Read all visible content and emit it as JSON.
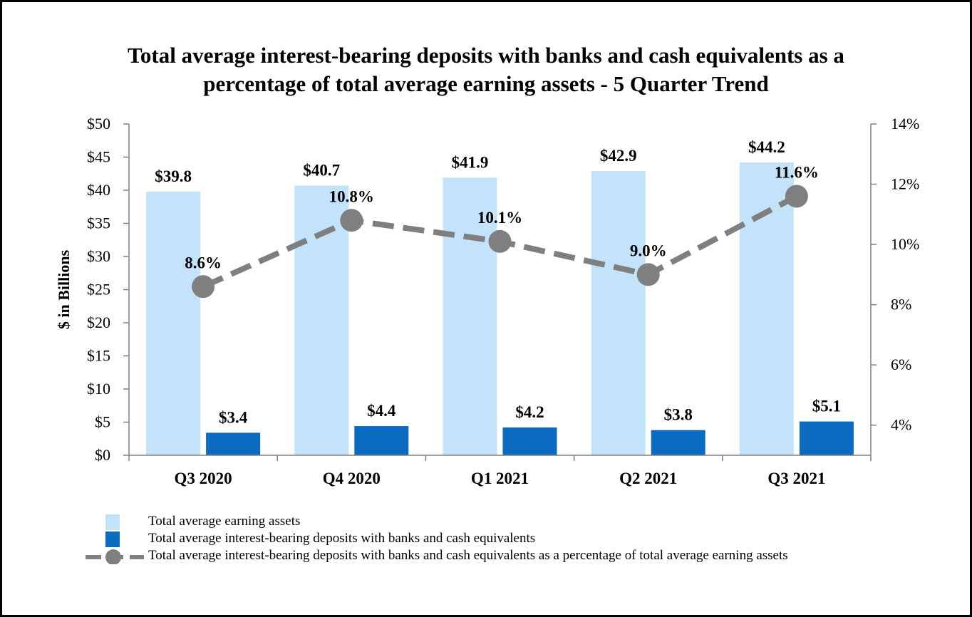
{
  "chart_data": {
    "type": "bar",
    "title": [
      "Total average interest-bearing deposits with banks and cash equivalents as a",
      "percentage of total average earning assets - 5 Quarter Trend"
    ],
    "categories": [
      "Q3 2020",
      "Q4 2020",
      "Q1 2021",
      "Q2 2021",
      "Q3 2021"
    ],
    "ylabel": "$ in Billions",
    "ylim": [
      0,
      50
    ],
    "yticks": [
      "$0",
      "$5",
      "$10",
      "$15",
      "$20",
      "$25",
      "$30",
      "$35",
      "$40",
      "$45",
      "$50"
    ],
    "y2lim": [
      3,
      14
    ],
    "y2ticks": [
      {
        "value": 4,
        "label": "4%"
      },
      {
        "value": 6,
        "label": "6%"
      },
      {
        "value": 8,
        "label": "8%"
      },
      {
        "value": 10,
        "label": "10%"
      },
      {
        "value": 12,
        "label": "12%"
      },
      {
        "value": 14,
        "label": "14%"
      }
    ],
    "series": [
      {
        "name": "Total average earning assets",
        "type": "bar",
        "axis": "left",
        "color": "#c2e3fa",
        "values": [
          39.8,
          40.7,
          41.9,
          42.9,
          44.2
        ],
        "labels": [
          "$39.8",
          "$40.7",
          "$41.9",
          "$42.9",
          "$44.2"
        ]
      },
      {
        "name": "Total average interest-bearing deposits with banks and cash equivalents",
        "type": "bar",
        "axis": "left",
        "color": "#0a6bc1",
        "values": [
          3.4,
          4.4,
          4.2,
          3.8,
          5.1
        ],
        "labels": [
          "$3.4",
          "$4.4",
          "$4.2",
          "$3.8",
          "$5.1"
        ]
      },
      {
        "name": "Total average interest-bearing deposits with banks and cash equivalents as a percentage of total average earning assets",
        "type": "line",
        "axis": "right",
        "style": "dashed",
        "marker": "circle",
        "color": "#7f7f7f",
        "values": [
          8.6,
          10.8,
          10.1,
          9.0,
          11.6
        ],
        "labels": [
          "8.6%",
          "10.8%",
          "10.1%",
          "9.0%",
          "11.6%"
        ]
      }
    ],
    "grid": false,
    "legend_position": "bottom"
  }
}
